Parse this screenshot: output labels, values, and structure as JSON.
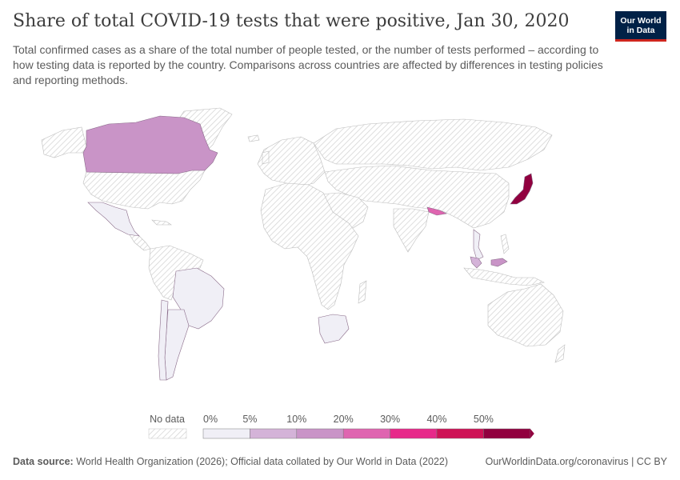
{
  "header": {
    "title": "Share of total COVID-19 tests that were positive, Jan 30, 2020",
    "subtitle": "Total confirmed cases as a share of the total number of people tested, or the number of tests performed – according to how testing data is reported by the country. Comparisons across countries are affected by differences in testing policies and reporting methods."
  },
  "logo": {
    "line1": "Our World",
    "line2": "in Data"
  },
  "legend": {
    "no_data_label": "No data",
    "bins": [
      {
        "label": "0%",
        "color": "#f0eff6"
      },
      {
        "label": "5%",
        "color": "#d4b3d8"
      },
      {
        "label": "10%",
        "color": "#c994c7"
      },
      {
        "label": "20%",
        "color": "#df65b0"
      },
      {
        "label": "30%",
        "color": "#e7298a"
      },
      {
        "label": "40%",
        "color": "#ce1256"
      },
      {
        "label": "50%",
        "color": "#91003f"
      }
    ]
  },
  "map_data": {
    "countries": [
      {
        "name": "Canada",
        "color": "#c994c7"
      },
      {
        "name": "Mexico",
        "color": "#f0eff6"
      },
      {
        "name": "Brazil",
        "color": "#f0eff6"
      },
      {
        "name": "Argentina",
        "color": "#f0eff6"
      },
      {
        "name": "Chile",
        "color": "#f0eff6"
      },
      {
        "name": "South Africa",
        "color": "#f0eff6"
      },
      {
        "name": "Nepal",
        "color": "#df65b0"
      },
      {
        "name": "Japan",
        "color": "#91003f"
      },
      {
        "name": "Malaysia",
        "color": "#c994c7"
      },
      {
        "name": "Thailand",
        "color": "#d4b3d8"
      },
      {
        "name": "Vietnam",
        "color": "#f0eff6"
      }
    ]
  },
  "footer": {
    "source_label": "Data source:",
    "source_text": "World Health Organization (2026); Official data collated by Our World in Data (2022)",
    "url": "OurWorldinData.org/coronavirus | CC BY"
  }
}
